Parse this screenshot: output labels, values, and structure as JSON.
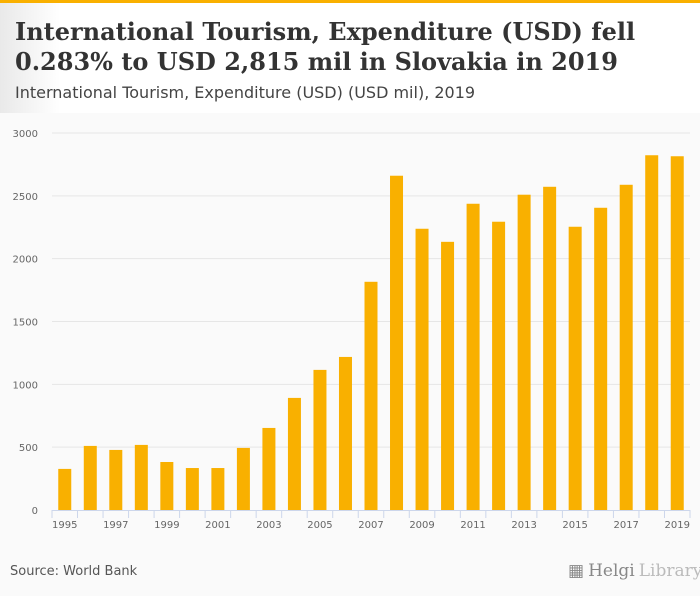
{
  "header": {
    "title": "International Tourism, Expenditure (USD) fell 0.283% to USD 2,815 mil in Slovakia in 2019",
    "subtitle": "International Tourism, Expenditure (USD) (USD mil), 2019"
  },
  "footer": {
    "source": "Source: World Bank",
    "logo_main": "Helgi",
    "logo_sub": "Library."
  },
  "colors": {
    "bar": "#f9b000",
    "grid": "#e6e6e6",
    "axis": "#ccd6eb"
  },
  "chart_data": {
    "type": "bar",
    "title": "International Tourism, Expenditure (USD) (USD mil), 2019",
    "xlabel": "",
    "ylabel": "",
    "ylim": [
      0,
      3000
    ],
    "yticks": [
      0,
      500,
      1000,
      1500,
      2000,
      2500,
      3000
    ],
    "grid": true,
    "categories": [
      "1995",
      "1996",
      "1997",
      "1998",
      "1999",
      "2000",
      "2001",
      "2002",
      "2003",
      "2004",
      "2005",
      "2006",
      "2007",
      "2008",
      "2009",
      "2010",
      "2011",
      "2012",
      "2013",
      "2014",
      "2015",
      "2016",
      "2017",
      "2018",
      "2019"
    ],
    "xtick_labels": [
      "1995",
      "1997",
      "1999",
      "2001",
      "2003",
      "2005",
      "2007",
      "2009",
      "2011",
      "2013",
      "2015",
      "2017",
      "2019"
    ],
    "values": [
      327,
      510,
      478,
      518,
      382,
      334,
      334,
      494,
      653,
      892,
      1115,
      1218,
      1816,
      2660,
      2238,
      2134,
      2437,
      2294,
      2509,
      2572,
      2254,
      2405,
      2588,
      2823,
      2815
    ]
  }
}
